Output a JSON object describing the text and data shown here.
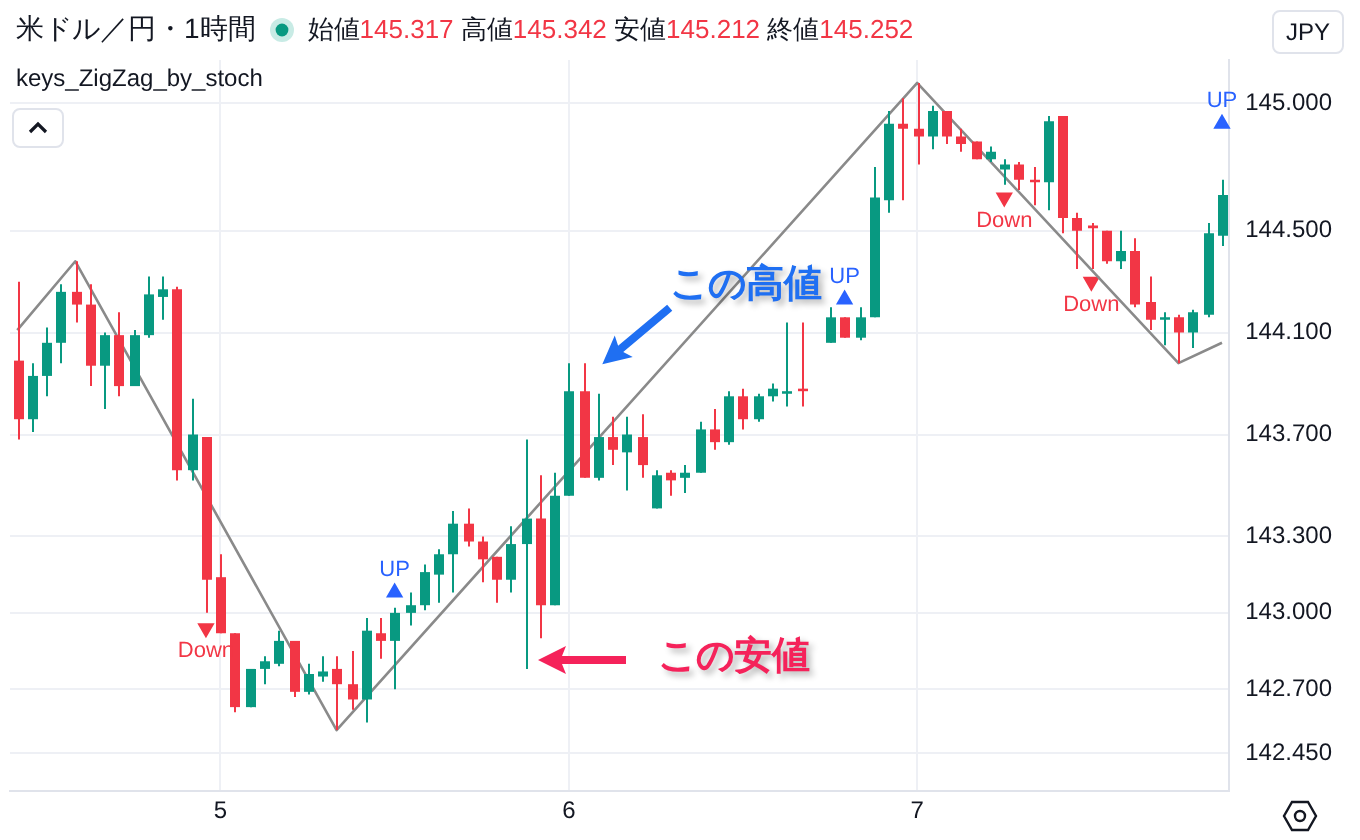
{
  "chart_data": {
    "type": "candlestick",
    "title": "米ドル／円・1時間",
    "subtitle": "始値145.317 高値145.342 安値145.212 終値145.252",
    "ylabel": "JPY",
    "annotations": [
      "keys_ZigZag_by_stoch",
      "この高値",
      "この安値"
    ],
    "series": [
      {
        "ohlc": [
          [
            143.99,
            144.3,
            143.68,
            143.76
          ],
          [
            143.76,
            143.98,
            143.71,
            143.93
          ],
          [
            143.93,
            144.12,
            143.85,
            144.06
          ],
          [
            144.06,
            144.29,
            143.98,
            144.26
          ],
          [
            144.26,
            144.38,
            144.14,
            144.21
          ],
          [
            144.21,
            144.29,
            143.89,
            143.97
          ],
          [
            143.97,
            144.1,
            143.8,
            144.09
          ],
          [
            144.09,
            144.18,
            143.85,
            143.89
          ],
          [
            143.89,
            144.11,
            143.89,
            144.09
          ],
          [
            144.09,
            144.32,
            144.08,
            144.25
          ],
          [
            144.24,
            144.32,
            144.15,
            144.27
          ],
          [
            144.27,
            144.28,
            143.52,
            143.56
          ],
          [
            143.56,
            143.84,
            143.52,
            143.7
          ],
          [
            143.69,
            143.69,
            143.0,
            143.13
          ],
          [
            143.14,
            143.23,
            142.92,
            142.92
          ],
          [
            142.92,
            142.92,
            142.61,
            142.63
          ],
          [
            142.63,
            142.78,
            142.63,
            142.78
          ],
          [
            142.78,
            142.83,
            142.72,
            142.81
          ],
          [
            142.8,
            142.93,
            142.79,
            142.89
          ],
          [
            142.89,
            142.89,
            142.67,
            142.69
          ],
          [
            142.69,
            142.8,
            142.68,
            142.76
          ],
          [
            142.75,
            142.83,
            142.73,
            142.77
          ],
          [
            142.78,
            142.83,
            142.54,
            142.72
          ],
          [
            142.72,
            142.85,
            142.62,
            142.66
          ],
          [
            142.66,
            142.98,
            142.57,
            142.93
          ],
          [
            142.92,
            142.98,
            142.82,
            142.89
          ],
          [
            142.89,
            143.02,
            142.7,
            143.0
          ],
          [
            143.0,
            143.08,
            142.95,
            143.03
          ],
          [
            143.03,
            143.19,
            143.01,
            143.16
          ],
          [
            143.15,
            143.25,
            143.04,
            143.23
          ],
          [
            143.23,
            143.4,
            143.08,
            143.35
          ],
          [
            143.35,
            143.41,
            143.26,
            143.28
          ],
          [
            143.28,
            143.3,
            143.12,
            143.21
          ],
          [
            143.22,
            143.22,
            143.04,
            143.13
          ],
          [
            143.13,
            143.34,
            143.08,
            143.27
          ],
          [
            143.27,
            143.68,
            142.78,
            143.37
          ],
          [
            143.37,
            143.54,
            142.9,
            143.03
          ],
          [
            143.03,
            143.55,
            143.03,
            143.46
          ],
          [
            143.46,
            143.98,
            143.46,
            143.87
          ],
          [
            143.87,
            143.98,
            143.53,
            143.53
          ],
          [
            143.53,
            143.86,
            143.52,
            143.69
          ],
          [
            143.69,
            143.77,
            143.58,
            143.64
          ],
          [
            143.63,
            143.77,
            143.48,
            143.7
          ],
          [
            143.69,
            143.78,
            143.53,
            143.58
          ],
          [
            143.41,
            143.56,
            143.41,
            143.54
          ],
          [
            143.55,
            143.56,
            143.46,
            143.52
          ],
          [
            143.53,
            143.58,
            143.47,
            143.55
          ],
          [
            143.55,
            143.75,
            143.55,
            143.72
          ],
          [
            143.72,
            143.8,
            143.64,
            143.67
          ],
          [
            143.67,
            143.87,
            143.66,
            143.85
          ],
          [
            143.85,
            143.88,
            143.72,
            143.76
          ],
          [
            143.76,
            143.86,
            143.75,
            143.85
          ],
          [
            143.85,
            143.9,
            143.83,
            143.88
          ],
          [
            143.86,
            144.14,
            143.81,
            143.87
          ],
          [
            143.88,
            144.14,
            143.81,
            143.87
          ],
          null,
          [
            144.06,
            144.2,
            144.06,
            144.16
          ],
          [
            144.16,
            144.16,
            144.08,
            144.08
          ],
          [
            144.08,
            144.2,
            144.07,
            144.16
          ],
          [
            144.16,
            144.75,
            144.16,
            144.63
          ],
          [
            144.62,
            144.97,
            144.57,
            144.92
          ],
          [
            144.92,
            145.02,
            144.62,
            144.9
          ],
          [
            144.9,
            145.08,
            144.76,
            144.87
          ],
          [
            144.87,
            144.99,
            144.82,
            144.97
          ],
          [
            144.97,
            144.97,
            144.84,
            144.87
          ],
          [
            144.87,
            144.9,
            144.81,
            144.84
          ],
          [
            144.85,
            144.85,
            144.78,
            144.78
          ],
          [
            144.78,
            144.83,
            144.77,
            144.81
          ],
          [
            144.74,
            144.78,
            144.68,
            144.76
          ],
          [
            144.76,
            144.77,
            144.66,
            144.7
          ],
          [
            144.7,
            144.75,
            144.6,
            144.69
          ],
          [
            144.69,
            144.95,
            144.58,
            144.93
          ],
          [
            144.95,
            144.95,
            144.49,
            144.55
          ],
          [
            144.55,
            144.57,
            144.35,
            144.5
          ],
          [
            144.52,
            144.53,
            144.35,
            144.51
          ],
          [
            144.5,
            144.5,
            144.37,
            144.38
          ],
          [
            144.38,
            144.5,
            144.35,
            144.42
          ],
          [
            144.42,
            144.47,
            144.2,
            144.21
          ],
          [
            144.22,
            144.32,
            144.11,
            144.15
          ],
          [
            144.15,
            144.18,
            144.05,
            144.16
          ],
          [
            144.16,
            144.17,
            143.98,
            144.1
          ],
          [
            144.1,
            144.19,
            144.04,
            144.18
          ],
          [
            144.17,
            144.53,
            144.16,
            144.49
          ],
          [
            144.48,
            144.7,
            144.44,
            144.64
          ]
        ],
        "colors": [
          "#f23645",
          "#089981",
          "#089981",
          "#089981",
          "#f23645",
          "#f23645",
          "#089981",
          "#f23645",
          "#089981",
          "#089981",
          "#089981",
          "#f23645",
          "#089981",
          "#f23645",
          "#f23645",
          "#f23645",
          "#089981",
          "#089981",
          "#089981",
          "#f23645",
          "#089981",
          "#089981",
          "#f23645",
          "#f23645",
          "#089981",
          "#f23645",
          "#089981",
          "#089981",
          "#089981",
          "#089981",
          "#089981",
          "#f23645",
          "#f23645",
          "#f23645",
          "#089981",
          "#089981",
          "#f23645",
          "#089981",
          "#089981",
          "#f23645",
          "#089981",
          "#f23645",
          "#089981",
          "#f23645",
          "#089981",
          "#f23645",
          "#089981",
          "#089981",
          "#f23645",
          "#089981",
          "#f23645",
          "#089981",
          "#089981",
          "#089981",
          "#f23645",
          null,
          "#089981",
          "#f23645",
          "#089981",
          "#089981",
          "#089981",
          "#f23645",
          "#f23645",
          "#089981",
          "#f23645",
          "#f23645",
          "#f23645",
          "#089981",
          "#089981",
          "#f23645",
          "#f23645",
          "#089981",
          "#f23645",
          "#f23645",
          "#f23645",
          "#f23645",
          "#089981",
          "#f23645",
          "#f23645",
          "#089981",
          "#f23645",
          "#089981",
          "#089981",
          "#089981"
        ]
      },
      {
        "type": "line",
        "color": "#8a8a8a",
        "values": [
          144.11,
          null,
          null,
          null,
          144.38,
          null,
          null,
          null,
          null,
          null,
          null,
          null,
          null,
          null,
          null,
          null,
          null,
          null,
          null,
          null,
          null,
          null,
          142.54,
          null,
          null,
          null,
          null,
          null,
          null,
          null,
          null,
          null,
          null,
          null,
          null,
          null,
          null,
          null,
          null,
          null,
          null,
          null,
          null,
          null,
          null,
          null,
          null,
          null,
          null,
          null,
          null,
          null,
          null,
          null,
          null,
          null,
          null,
          null,
          null,
          null,
          null,
          null,
          145.08,
          null,
          null,
          null,
          null,
          null,
          null,
          null,
          null,
          null,
          null,
          null,
          null,
          null,
          null,
          null,
          null,
          null,
          143.98,
          null,
          null,
          144.06
        ]
      },
      {
        "type": "scatter",
        "name": "UP",
        "color": "#2962ff",
        "marker": "triangle",
        "values": [
          null,
          null,
          null,
          null,
          null,
          null,
          null,
          null,
          null,
          null,
          null,
          null,
          null,
          null,
          null,
          null,
          null,
          null,
          null,
          null,
          null,
          null,
          null,
          null,
          null,
          null,
          143.08,
          null,
          null,
          null,
          null,
          null,
          null,
          null,
          null,
          null,
          null,
          null,
          null,
          null,
          null,
          null,
          null,
          null,
          null,
          null,
          null,
          null,
          null,
          null,
          null,
          null,
          null,
          null,
          null,
          null,
          null,
          144.23,
          null,
          null,
          null,
          null,
          null,
          null,
          null,
          null,
          null,
          null,
          null,
          null,
          null,
          null,
          null,
          null,
          null,
          null,
          null,
          null,
          null,
          null,
          null,
          null,
          null,
          144.92
        ]
      },
      {
        "type": "scatter",
        "name": "Down",
        "color": "#f23645",
        "marker": "triangle",
        "values": [
          null,
          null,
          null,
          null,
          null,
          null,
          null,
          null,
          null,
          null,
          null,
          null,
          null,
          142.94,
          null,
          null,
          null,
          null,
          null,
          null,
          null,
          null,
          null,
          null,
          null,
          null,
          null,
          null,
          null,
          null,
          null,
          null,
          null,
          null,
          null,
          null,
          null,
          null,
          null,
          null,
          null,
          null,
          null,
          null,
          null,
          null,
          null,
          null,
          null,
          null,
          null,
          null,
          null,
          null,
          null,
          null,
          null,
          null,
          null,
          null,
          null,
          null,
          null,
          null,
          null,
          null,
          null,
          null,
          144.63,
          null,
          null,
          null,
          null,
          null,
          144.3,
          null,
          null,
          null,
          null,
          null,
          null,
          null,
          null,
          null
        ]
      }
    ],
    "categories": [
      null,
      null,
      null,
      null,
      null,
      null,
      null,
      null,
      null,
      null,
      null,
      null,
      null,
      null,
      "5",
      null,
      null,
      null,
      null,
      null,
      null,
      null,
      null,
      null,
      null,
      null,
      null,
      null,
      null,
      null,
      null,
      null,
      null,
      null,
      null,
      null,
      null,
      null,
      "6",
      null,
      null,
      null,
      null,
      null,
      null,
      null,
      null,
      null,
      null,
      null,
      null,
      null,
      null,
      null,
      null,
      null,
      null,
      null,
      null,
      null,
      null,
      null,
      "7",
      null,
      null,
      null,
      null,
      null,
      null,
      null,
      null,
      null,
      null,
      null,
      null,
      null,
      null,
      null,
      null,
      null,
      null,
      null,
      null,
      null
    ],
    "ylim": [
      142.3,
      145.17
    ],
    "yticks": [
      {
        "value": 142.45,
        "label": "142.450"
      },
      {
        "value": 142.7,
        "label": "142.700"
      },
      {
        "value": 143,
        "label": "143.000"
      },
      {
        "value": 143.3,
        "label": "143.300"
      },
      {
        "value": 143.7,
        "label": "143.700"
      },
      {
        "value": 144.1,
        "label": "144.100"
      },
      {
        "value": 144.5,
        "label": "144.500"
      },
      {
        "value": 145,
        "label": "145.000"
      }
    ],
    "grid": true
  }
}
